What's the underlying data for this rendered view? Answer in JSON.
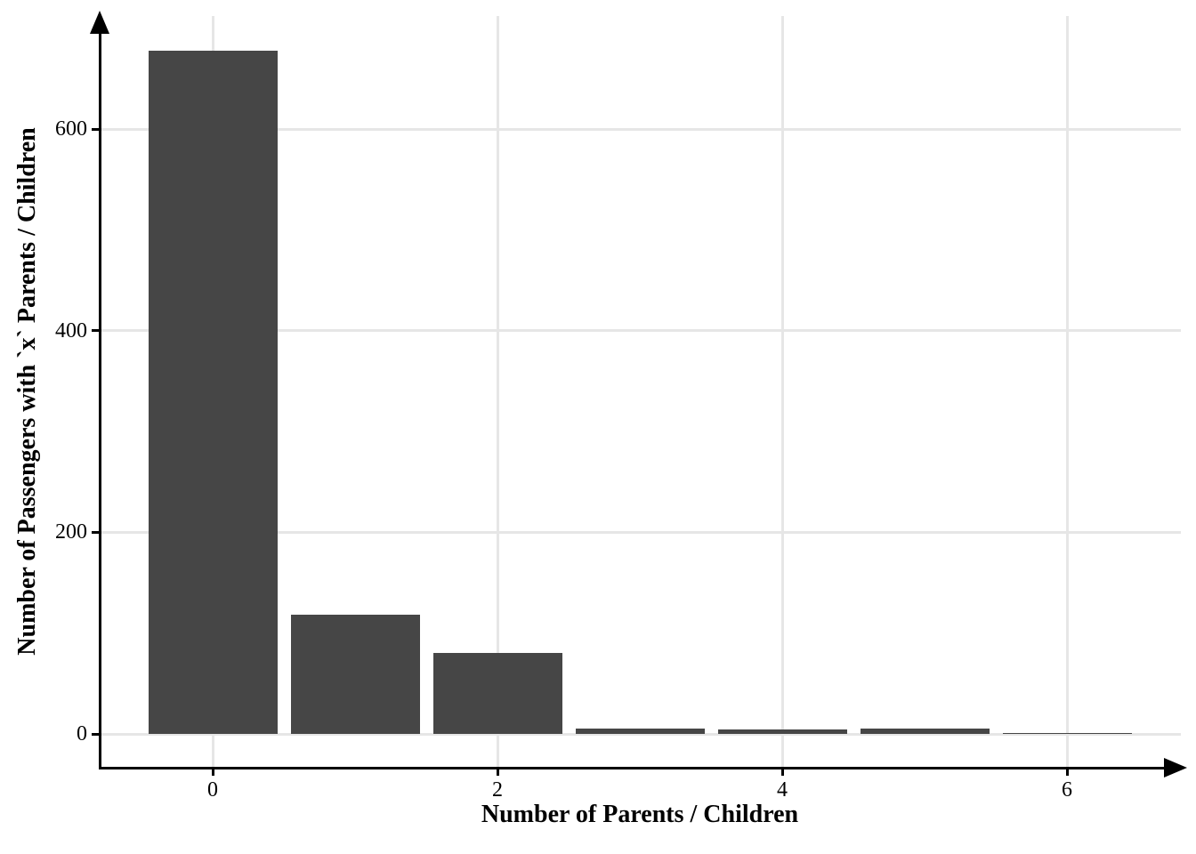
{
  "chart_data": {
    "type": "bar",
    "title": "",
    "xlabel": "Number of Parents / Children",
    "ylabel": "Number of Passengers with `x` Parents / Children",
    "categories": [
      0,
      1,
      2,
      3,
      4,
      5,
      6
    ],
    "values": [
      678,
      118,
      80,
      5,
      4,
      5,
      1
    ],
    "x_ticks": [
      0,
      2,
      4,
      6
    ],
    "y_ticks": [
      0,
      200,
      400,
      600
    ],
    "xlim": [
      -0.8,
      6.85
    ],
    "ylim": [
      -34,
      712
    ],
    "bar_width": 0.9,
    "grid": "major-only",
    "legend": "none",
    "bar_color": "#464646",
    "grid_color": "#e6e6e6",
    "axis_color": "#000000",
    "background_color": "#ffffff"
  }
}
